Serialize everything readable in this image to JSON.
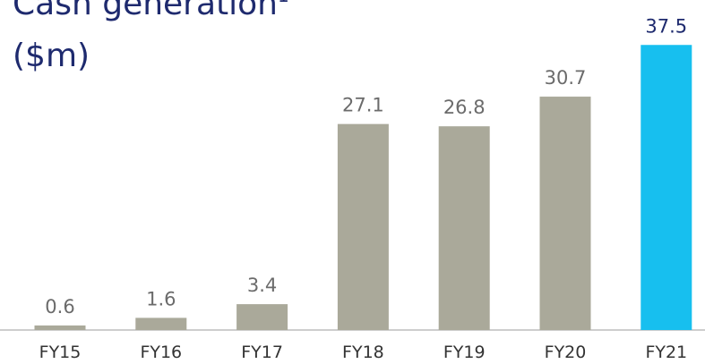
{
  "chart_data": {
    "type": "bar",
    "title": "Cash generation",
    "title_footnote": "1",
    "subtitle": "($m)",
    "categories": [
      "FY15",
      "FY16",
      "FY17",
      "FY18",
      "FY19",
      "FY20",
      "FY21"
    ],
    "values": [
      0.6,
      1.6,
      3.4,
      27.1,
      26.8,
      30.7,
      37.5
    ],
    "colors": [
      "#aaa99a",
      "#aaa99a",
      "#aaa99a",
      "#aaa99a",
      "#aaa99a",
      "#aaa99a",
      "#17bfef"
    ],
    "label_colors": [
      "#6b6b6b",
      "#6b6b6b",
      "#6b6b6b",
      "#6b6b6b",
      "#6b6b6b",
      "#6b6b6b",
      "#1e2a6e"
    ],
    "ylim": [
      0,
      40
    ],
    "grid": false
  }
}
